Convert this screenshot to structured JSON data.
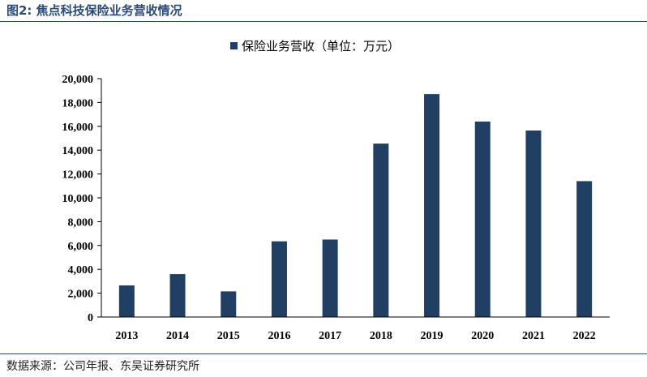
{
  "figure": {
    "title": "图2:  焦点科技保险业务营收情况",
    "source": "数据来源：公司年报、东吴证券研究所"
  },
  "chart_data": {
    "type": "bar",
    "categories": [
      "2013",
      "2014",
      "2015",
      "2016",
      "2017",
      "2018",
      "2019",
      "2020",
      "2021",
      "2022"
    ],
    "series": [
      {
        "name": "保险业务营收（单位：万元）",
        "values": [
          2650,
          3600,
          2150,
          6350,
          6500,
          14550,
          18700,
          16400,
          15650,
          11400
        ]
      }
    ],
    "ylim": [
      0,
      20000
    ],
    "yticks": [
      "0",
      "2,000",
      "4,000",
      "6,000",
      "8,000",
      "10,000",
      "12,000",
      "14,000",
      "16,000",
      "18,000",
      "20,000"
    ],
    "legend_position": "top-center",
    "grid": false,
    "bar_color": "#213f63"
  }
}
